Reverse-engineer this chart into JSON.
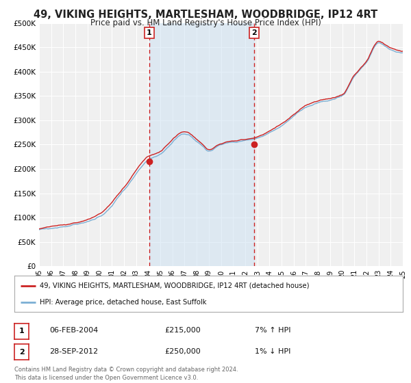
{
  "title": "49, VIKING HEIGHTS, MARTLESHAM, WOODBRIDGE, IP12 4RT",
  "subtitle": "Price paid vs. HM Land Registry's House Price Index (HPI)",
  "title_fontsize": 10.5,
  "subtitle_fontsize": 8.5,
  "bg_color": "#ffffff",
  "plot_bg_color": "#f0f0f0",
  "grid_color": "#ffffff",
  "hpi_color": "#7bafd4",
  "price_color": "#cc2222",
  "shaded_color": "#cfe2f3",
  "ylim": [
    0,
    500000
  ],
  "yticks": [
    0,
    50000,
    100000,
    150000,
    200000,
    250000,
    300000,
    350000,
    400000,
    450000,
    500000
  ],
  "ytick_labels": [
    "£0",
    "£50K",
    "£100K",
    "£150K",
    "£200K",
    "£250K",
    "£300K",
    "£350K",
    "£400K",
    "£450K",
    "£500K"
  ],
  "xmin": 1995.0,
  "xmax": 2025.0,
  "xtick_years": [
    1995,
    1996,
    1997,
    1998,
    1999,
    2000,
    2001,
    2002,
    2003,
    2004,
    2005,
    2006,
    2007,
    2008,
    2009,
    2010,
    2011,
    2012,
    2013,
    2014,
    2015,
    2016,
    2017,
    2018,
    2019,
    2020,
    2021,
    2022,
    2023,
    2024,
    2025
  ],
  "xtick_labels": [
    "95",
    "96",
    "97",
    "98",
    "99",
    "00",
    "01",
    "02",
    "03",
    "04",
    "05",
    "06",
    "07",
    "08",
    "09",
    "10",
    "11",
    "12",
    "13",
    "14",
    "15",
    "16",
    "17",
    "18",
    "19",
    "20",
    "21",
    "22",
    "23",
    "24",
    "25"
  ],
  "marker1_x": 2004.09,
  "marker1_y": 215000,
  "marker1_label": "1",
  "marker1_date": "06-FEB-2004",
  "marker1_price": "£215,000",
  "marker1_hpi": "7% ↑ HPI",
  "marker2_x": 2012.74,
  "marker2_y": 250000,
  "marker2_label": "2",
  "marker2_date": "28-SEP-2012",
  "marker2_price": "£250,000",
  "marker2_hpi": "1% ↓ HPI",
  "shade_x1": 2004.09,
  "shade_x2": 2012.74,
  "legend_line1": "49, VIKING HEIGHTS, MARTLESHAM, WOODBRIDGE, IP12 4RT (detached house)",
  "legend_line2": "HPI: Average price, detached house, East Suffolk",
  "footer1": "Contains HM Land Registry data © Crown copyright and database right 2024.",
  "footer2": "This data is licensed under the Open Government Licence v3.0."
}
